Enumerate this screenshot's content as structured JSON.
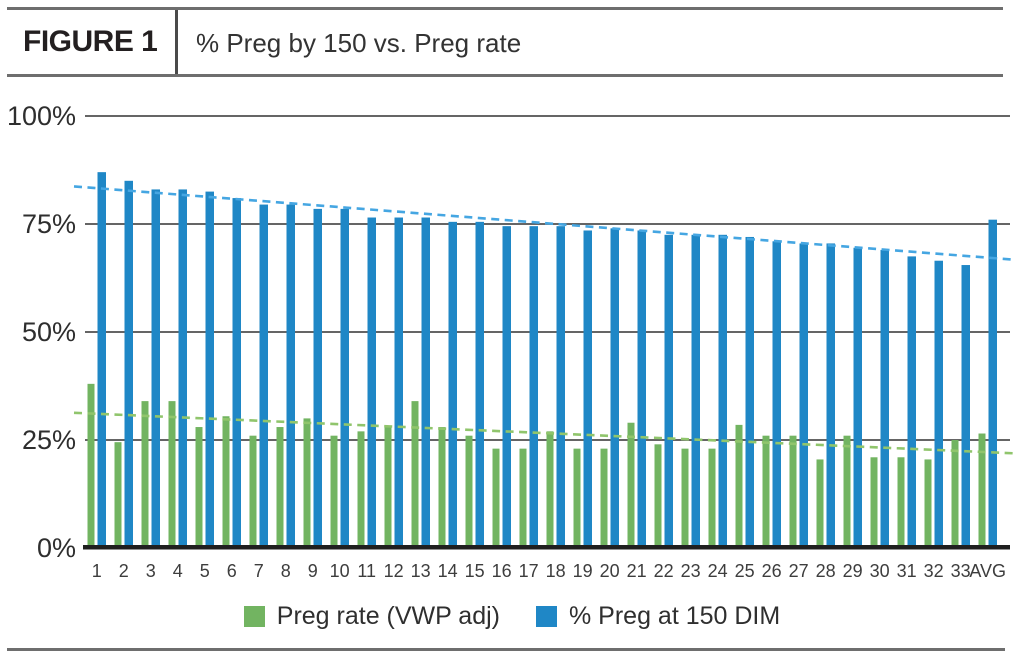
{
  "header": {
    "figure_label": "FIGURE 1",
    "title": "% Preg by 150 vs. Preg rate"
  },
  "chart_data": {
    "type": "bar",
    "title": "% Preg by 150 vs. Preg rate",
    "xlabel": "",
    "ylabel": "",
    "ylim": [
      0,
      100
    ],
    "grid": "horizontal",
    "legend_position": "bottom",
    "y_ticks": [
      {
        "label": "100%",
        "value": 100
      },
      {
        "label": "75%",
        "value": 75
      },
      {
        "label": "50%",
        "value": 50
      },
      {
        "label": "25%",
        "value": 25
      },
      {
        "label": "0%",
        "value": 0
      }
    ],
    "categories": [
      "1",
      "2",
      "3",
      "4",
      "5",
      "6",
      "7",
      "8",
      "9",
      "10",
      "11",
      "12",
      "13",
      "14",
      "15",
      "16",
      "17",
      "18",
      "19",
      "20",
      "21",
      "22",
      "23",
      "24",
      "25",
      "26",
      "27",
      "28",
      "29",
      "30",
      "31",
      "32",
      "33",
      "AVG"
    ],
    "series": [
      {
        "name": "Preg rate (VWP adj)",
        "color": "#72b461",
        "values": [
          38,
          24.5,
          34,
          34,
          28,
          30.5,
          26,
          28,
          30,
          26,
          27,
          28,
          34,
          28,
          26,
          23,
          23,
          27,
          23,
          23,
          29,
          24,
          23,
          23,
          28.5,
          26,
          26,
          20.5,
          26,
          21,
          21,
          20.5,
          25,
          26.5
        ]
      },
      {
        "name": "% Preg at 150 DIM",
        "color": "#1f87c6",
        "values": [
          87,
          85,
          83,
          83,
          82.5,
          81,
          79.5,
          79.5,
          78.5,
          78.5,
          76.5,
          76.5,
          76.5,
          75.5,
          75.5,
          74.5,
          74.5,
          74.5,
          73.5,
          74,
          73.5,
          72.5,
          72.5,
          72.5,
          72,
          71,
          70.5,
          70.5,
          69.5,
          69,
          67.5,
          66.5,
          65.5,
          76
        ]
      }
    ],
    "trendlines": [
      {
        "series": "% Preg at 150 DIM",
        "start_pct": 83.7,
        "end_pct": 66.7,
        "color": "#45a6e2",
        "style": "dashed"
      },
      {
        "series": "Preg rate (VWP adj)",
        "start_pct": 31.3,
        "end_pct": 21.9,
        "color": "#90c56c",
        "style": "dashed"
      }
    ],
    "colors": {
      "gridline": "#4f4f4f",
      "axis": "#1f1f1f",
      "tick_text": "#2e2e2e",
      "rule": "#6e6e6e"
    }
  }
}
